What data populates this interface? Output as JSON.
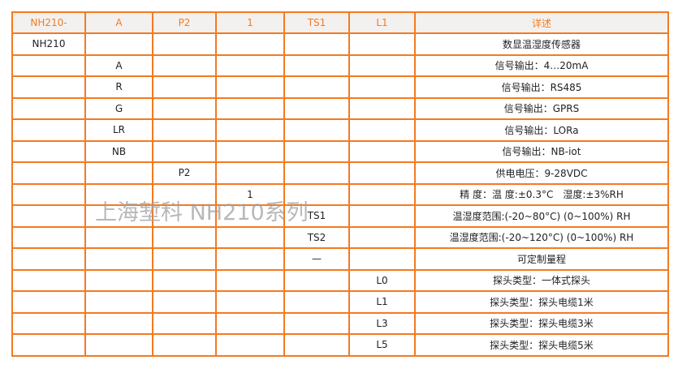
{
  "headers": [
    "NH210-",
    "A",
    "P2",
    "1",
    "TS1",
    "L1",
    "详述"
  ],
  "rows": [
    [
      "NH210",
      "",
      "",
      "",
      "",
      "",
      "数显温湿度传感器"
    ],
    [
      "",
      "A",
      "",
      "",
      "",
      "",
      "信号输出：4…20mA"
    ],
    [
      "",
      "R",
      "",
      "",
      "",
      "",
      "信号输出：RS485"
    ],
    [
      "",
      "G",
      "",
      "",
      "",
      "",
      "信号输出：GPRS"
    ],
    [
      "",
      "LR",
      "",
      "",
      "",
      "",
      "信号输出：LORa"
    ],
    [
      "",
      "NB",
      "",
      "",
      "",
      "",
      "信号输出：NB-iot"
    ],
    [
      "",
      "",
      "P2",
      "",
      "",
      "",
      "供电电压：9-28VDC"
    ],
    [
      "",
      "",
      "",
      "1",
      "",
      "",
      "精 度：温 度:±0.3°C　湿度:±3%RH"
    ],
    [
      "",
      "",
      "",
      "",
      "TS1",
      "",
      "温湿度范围:(-20~80°C) (0~100%) RH"
    ],
    [
      "",
      "",
      "",
      "",
      "TS2",
      "",
      "温湿度范围:(-20~120°C) (0~100%) RH"
    ],
    [
      "",
      "",
      "",
      "",
      "—",
      "",
      "可定制量程"
    ],
    [
      "",
      "",
      "",
      "",
      "",
      "L0",
      "探头类型：一体式探头"
    ],
    [
      "",
      "",
      "",
      "",
      "",
      "L1",
      "探头类型：探头电缆1米"
    ],
    [
      "",
      "",
      "",
      "",
      "",
      "L3",
      "探头类型：探头电缆3米"
    ],
    [
      "",
      "",
      "",
      "",
      "",
      "L5",
      "探头类型：探头电缆5米"
    ]
  ],
  "watermark": "上海堑科 NH210系列",
  "colors": {
    "border": "#f47a20",
    "header_bg": "#f3f1ef"
  }
}
